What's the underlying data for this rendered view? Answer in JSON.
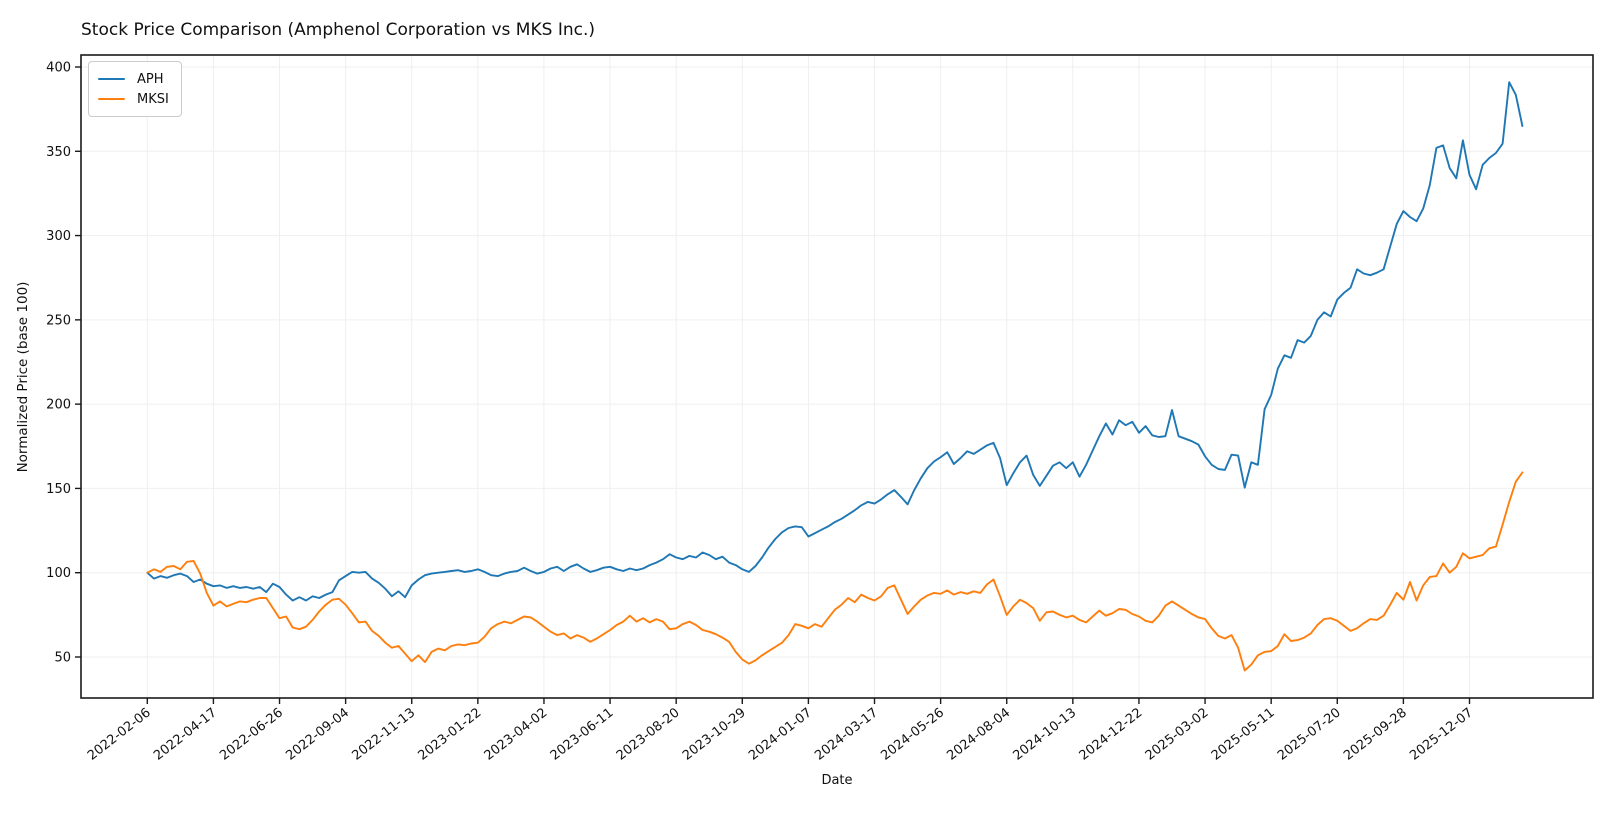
{
  "figure": {
    "background": "#ffffff",
    "plot_background": "#ffffff",
    "grid_color": "#efefef",
    "spine_color": "#1a1a1a"
  },
  "chart_data": {
    "type": "line",
    "title": "Stock Price Comparison (Amphenol Corporation vs MKS Inc.)",
    "xlabel": "Date",
    "ylabel": "Normalized Price (base 100)",
    "x_start": "2022-02-06",
    "x_frequency": "weekly",
    "n_points": 209,
    "grid": true,
    "legend_position": "upper-left",
    "ylim": [
      25,
      408
    ],
    "y_ticks": [
      50,
      100,
      150,
      200,
      250,
      300,
      350,
      400
    ],
    "x_tick_indices": [
      0,
      10,
      20,
      30,
      40,
      50,
      60,
      70,
      80,
      90,
      100,
      110,
      120,
      130,
      140,
      150,
      160,
      170,
      180,
      190,
      200
    ],
    "x_tick_labels": [
      "2022-02-06",
      "2022-04-17",
      "2022-06-26",
      "2022-09-04",
      "2022-11-13",
      "2023-01-22",
      "2023-04-02",
      "2023-06-11",
      "2023-08-20",
      "2023-10-29",
      "2024-01-07",
      "2024-03-17",
      "2024-05-26",
      "2024-08-04",
      "2024-10-13",
      "2024-12-22",
      "2025-03-02",
      "2025-05-11",
      "2025-07-20",
      "2025-09-28",
      "2025-12-07"
    ],
    "series": [
      {
        "name": "APH",
        "color": "#1f77b4",
        "values": [
          100,
          96.5,
          98,
          97,
          98.5,
          99.5,
          98,
          94.5,
          96,
          93.5,
          92,
          92.5,
          91,
          92,
          91,
          91.5,
          90.5,
          91.5,
          88.5,
          93.5,
          91.5,
          87,
          83.5,
          85.5,
          83.5,
          86,
          85,
          87,
          88.5,
          95.5,
          98,
          100.5,
          100,
          100.5,
          96.5,
          94,
          90.5,
          86,
          89,
          85.5,
          92.5,
          96,
          98.5,
          99.5,
          100,
          100.5,
          101,
          101.5,
          100.5,
          101,
          102,
          100.5,
          98.5,
          98,
          99.5,
          100.5,
          101,
          103,
          101,
          99.5,
          100.5,
          102.5,
          103.5,
          101,
          103.5,
          105,
          102.5,
          100.5,
          101.5,
          103,
          103.5,
          102,
          101,
          102.5,
          101.5,
          102.5,
          104.5,
          106,
          108,
          111,
          109,
          108,
          110,
          109,
          112,
          110.5,
          108,
          109.5,
          106,
          104.5,
          102,
          100.5,
          104,
          109,
          115,
          120,
          124,
          126.5,
          127.5,
          127,
          121.5,
          123.5,
          125.5,
          127.5,
          130,
          132,
          134.5,
          137,
          140,
          142,
          141,
          143.5,
          146.5,
          149,
          145,
          140.5,
          149,
          156,
          162,
          166,
          168.5,
          171.5,
          164.5,
          168,
          172,
          170.5,
          173,
          175.5,
          177,
          168,
          152,
          159,
          165.5,
          169.5,
          158,
          151.5,
          157.5,
          163.5,
          165.5,
          162,
          165.5,
          157,
          164,
          172.5,
          181,
          188.5,
          182,
          190.5,
          187.5,
          189.5,
          183,
          187,
          181.5,
          180.5,
          181,
          196.5,
          181,
          179.5,
          178,
          176,
          169,
          164,
          161.5,
          161,
          170,
          169.5,
          150.5,
          165.5,
          164,
          197,
          205.5,
          221,
          229,
          227.5,
          238,
          236.5,
          240.5,
          250,
          254.5,
          252,
          262,
          266,
          269,
          280,
          277.5,
          276.5,
          278,
          280,
          293.5,
          307,
          314.5,
          311,
          308.5,
          316,
          330,
          352,
          353.5,
          340,
          334,
          356.5,
          336,
          327.5,
          342,
          346,
          349,
          354.5,
          391,
          383.5,
          365
        ]
      },
      {
        "name": "MKSI",
        "color": "#ff7f0e",
        "values": [
          100,
          102,
          100.5,
          103.5,
          104,
          102,
          106.5,
          107,
          99.5,
          88,
          80.5,
          83,
          80,
          81.5,
          83,
          82.5,
          84,
          85,
          85,
          79,
          73,
          74,
          67.5,
          66.5,
          68,
          72,
          77,
          81,
          84,
          84.5,
          81,
          76,
          70.5,
          71,
          65.5,
          62.5,
          58.5,
          55.5,
          56.5,
          52,
          47.5,
          51,
          47,
          53,
          55,
          54,
          56.5,
          57.5,
          57,
          58,
          58.5,
          62,
          67,
          69.5,
          71,
          70,
          72,
          74,
          73.5,
          71,
          68,
          65,
          63,
          64,
          61,
          63,
          61.5,
          59,
          61,
          63.5,
          66,
          69,
          71,
          74.5,
          71,
          73,
          70.5,
          72.5,
          71,
          66.5,
          67,
          69.5,
          71,
          69,
          66,
          65,
          63.5,
          61.5,
          59,
          53,
          48.5,
          46,
          48,
          51,
          53.5,
          56,
          58.5,
          63,
          69.5,
          68.5,
          67,
          69.5,
          68,
          73,
          78,
          81,
          85,
          82.5,
          87,
          85,
          83.5,
          86,
          91,
          92.5,
          84,
          75.5,
          80,
          84,
          86.5,
          88,
          87.5,
          89.5,
          87,
          88.5,
          87.5,
          89,
          88,
          93,
          96,
          86,
          75,
          80,
          84,
          82,
          79,
          71.5,
          76.5,
          77,
          75,
          73.5,
          74.5,
          72,
          70.5,
          74,
          77.5,
          74.5,
          76,
          78.5,
          78,
          75.5,
          74,
          71.5,
          70.5,
          74.5,
          80.5,
          83,
          80.5,
          78,
          75.5,
          73.5,
          72.5,
          67,
          62.5,
          61,
          63,
          55.5,
          42,
          45.5,
          51,
          53,
          53.5,
          56.5,
          63.5,
          59.5,
          60,
          61.5,
          64,
          69,
          72.5,
          73,
          71.5,
          68.5,
          65.5,
          67,
          70,
          72.5,
          72,
          74.5,
          81,
          88,
          84,
          94.5,
          83.5,
          92.5,
          97.5,
          98,
          105.5,
          100,
          103.5,
          111.5,
          108.5,
          109.5,
          110.5,
          114.5,
          115.5,
          128.5,
          142,
          154,
          159.5
        ]
      }
    ]
  }
}
